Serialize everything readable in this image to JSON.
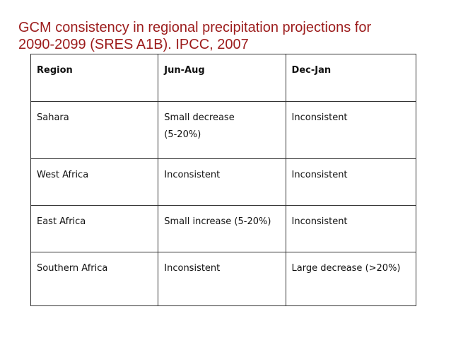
{
  "title": {
    "line1": "GCM consistency in regional precipitation projections for",
    "line2": "2090-2099 (SRES A1B).  IPCC, 2007"
  },
  "table": {
    "headers": [
      "Region",
      "Jun-Aug",
      "Dec-Jan"
    ],
    "rows": [
      {
        "region": "Sahara",
        "jun_aug": [
          "Small decrease",
          "(5-20%)"
        ],
        "dec_jan": "Inconsistent"
      },
      {
        "region": "West Africa",
        "jun_aug": [
          "Inconsistent"
        ],
        "dec_jan": "Inconsistent"
      },
      {
        "region": "East Africa",
        "jun_aug": [
          "Small increase (5-20%)"
        ],
        "dec_jan": "Inconsistent"
      },
      {
        "region": "Southern Africa",
        "jun_aug": [
          "Inconsistent"
        ],
        "dec_jan": "Large decrease (>20%)"
      }
    ]
  }
}
